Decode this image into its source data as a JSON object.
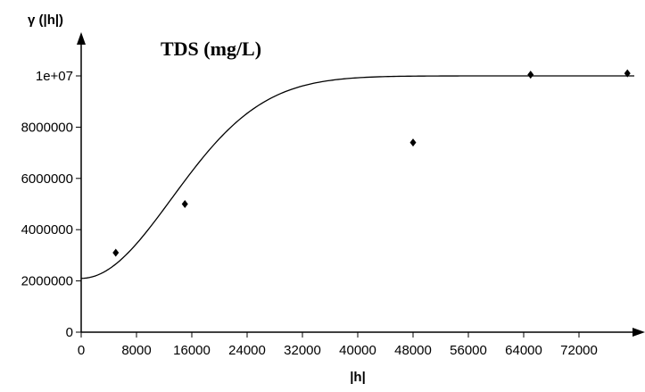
{
  "chart_data": {
    "type": "scatter",
    "title": "TDS (mg/L)",
    "xlabel": "|h|",
    "ylabel": "γ (|h|)",
    "xlim": [
      0,
      80000
    ],
    "ylim": [
      0,
      10000000
    ],
    "x_ticks": [
      0,
      8000,
      16000,
      24000,
      32000,
      40000,
      48000,
      56000,
      64000,
      72000
    ],
    "x_tick_labels": [
      "0",
      "8000",
      "16000",
      "24000",
      "32000",
      "40000",
      "48000",
      "56000",
      "64000",
      "72000"
    ],
    "y_ticks": [
      0,
      2000000,
      4000000,
      6000000,
      8000000,
      10000000
    ],
    "y_tick_labels": [
      "0",
      "2000000",
      "4000000",
      "6000000",
      "8000000",
      "1e+07"
    ],
    "grid": false,
    "series": [
      {
        "type": "scatter",
        "marker": "diamond",
        "color": "#000000",
        "points": [
          {
            "x": 5000,
            "y": 3100000
          },
          {
            "x": 15000,
            "y": 5000000
          },
          {
            "x": 48000,
            "y": 7400000
          },
          {
            "x": 65000,
            "y": 10050000
          },
          {
            "x": 79000,
            "y": 10100000
          }
        ]
      },
      {
        "type": "line",
        "model": "gaussian",
        "color": "#000000",
        "nugget": 2100000,
        "sill": 10000000,
        "range": 32000,
        "x_max": 80000
      }
    ]
  }
}
